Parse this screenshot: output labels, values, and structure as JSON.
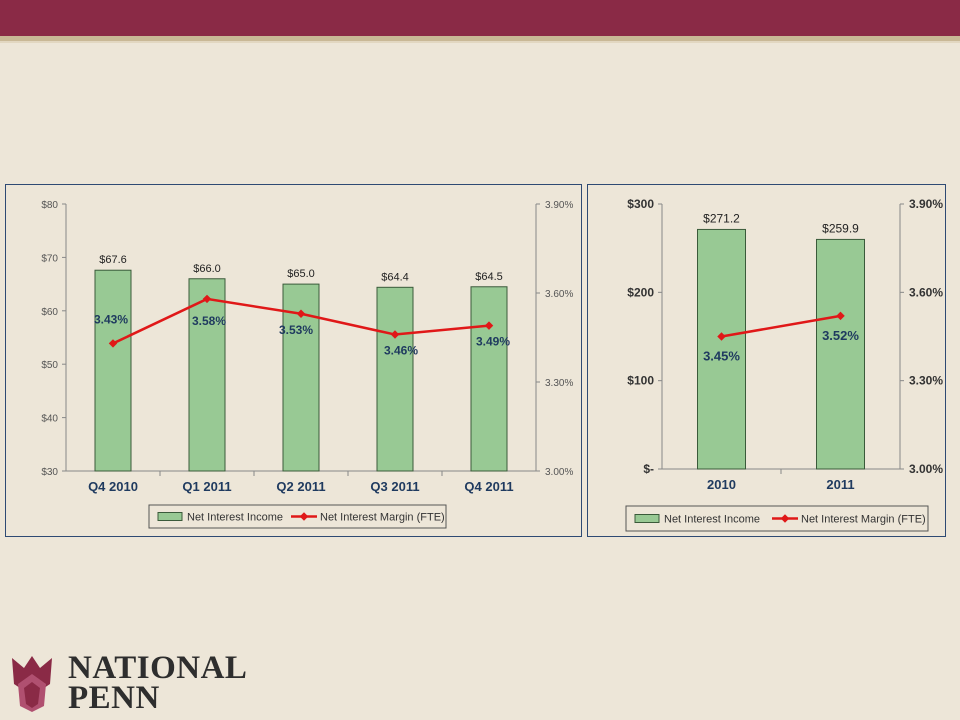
{
  "colors": {
    "header": "#8a2a46",
    "background": "#ede6d8",
    "bar_fill": "#98c994",
    "bar_stroke": "#3a5a3a",
    "line": "#e01818",
    "panel_border": "#2e4a73",
    "label_dark": "#1f3a5f"
  },
  "chart_data": [
    {
      "type": "bar",
      "categories": [
        "Q4 2010",
        "Q1 2011",
        "Q2 2011",
        "Q3 2011",
        "Q4 2011"
      ],
      "series": [
        {
          "name": "Net Interest Income",
          "type": "bar",
          "axis": "left",
          "values": [
            67.6,
            66.0,
            65.0,
            64.4,
            64.5
          ],
          "labels": [
            "$67.6",
            "$66.0",
            "$65.0",
            "$64.4",
            "$64.5"
          ]
        },
        {
          "name": "Net Interest Margin (FTE)",
          "type": "line",
          "axis": "right",
          "values": [
            3.43,
            3.58,
            3.53,
            3.46,
            3.49
          ],
          "labels": [
            "3.43%",
            "3.58%",
            "3.53%",
            "3.46%",
            "3.49%"
          ]
        }
      ],
      "y_left": {
        "min": 30,
        "max": 80,
        "ticks": [
          "$30",
          "$40",
          "$50",
          "$60",
          "$70",
          "$80"
        ]
      },
      "y_right": {
        "min": 3.0,
        "max": 3.9,
        "ticks": [
          "3.00%",
          "3.30%",
          "3.60%",
          "3.90%"
        ]
      },
      "legend": {
        "position": "bottom",
        "items": [
          "Net Interest Income",
          "Net Interest Margin (FTE)"
        ]
      },
      "grid": false
    },
    {
      "type": "bar",
      "categories": [
        "2010",
        "2011"
      ],
      "series": [
        {
          "name": "Net Interest Income",
          "type": "bar",
          "axis": "left",
          "values": [
            271.2,
            259.9
          ],
          "labels": [
            "$271.2",
            "$259.9"
          ]
        },
        {
          "name": "Net Interest Margin (FTE)",
          "type": "line",
          "axis": "right",
          "values": [
            3.45,
            3.52
          ],
          "labels": [
            "3.45%",
            "3.52%"
          ]
        }
      ],
      "y_left": {
        "min": 0,
        "max": 300,
        "ticks": [
          "$-",
          "$100",
          "$200",
          "$300"
        ]
      },
      "y_right": {
        "min": 3.0,
        "max": 3.9,
        "ticks": [
          "3.00%",
          "3.30%",
          "3.60%",
          "3.90%"
        ]
      },
      "legend": {
        "position": "bottom",
        "items": [
          "Net Interest Income",
          "Net Interest Margin (FTE)"
        ]
      },
      "grid": false
    }
  ],
  "logo": {
    "line1": "NATIONAL",
    "line2": "PENN",
    "icon": "tulip-icon"
  }
}
